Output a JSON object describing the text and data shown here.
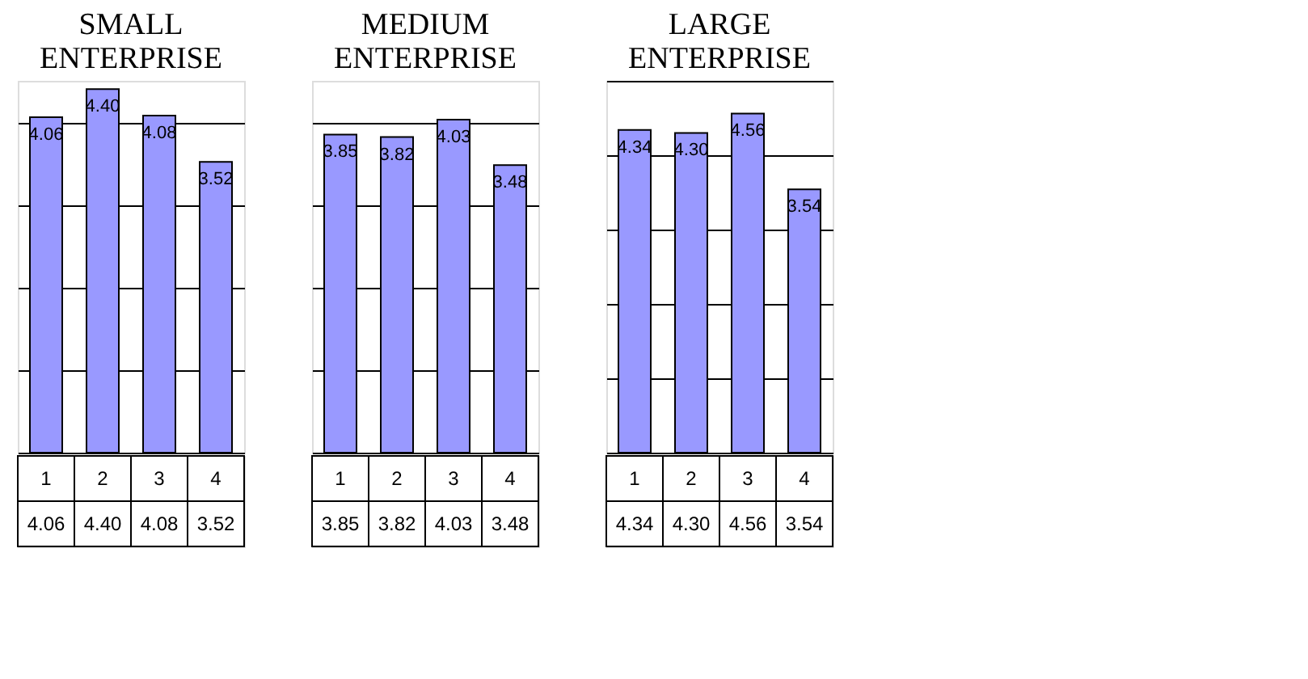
{
  "chart_data": [
    {
      "type": "bar",
      "title": "SMALL ENTERPRISE",
      "categories": [
        "1",
        "2",
        "3",
        "4"
      ],
      "values": [
        4.06,
        4.4,
        4.08,
        3.52
      ],
      "value_labels": [
        "4.06",
        "4.40",
        "4.08",
        "3.52"
      ],
      "color": "#9999ff",
      "grid": "y",
      "tick_labels": "x"
    },
    {
      "type": "bar",
      "title": "MEDIUM ENTERPRISE",
      "categories": [
        "1",
        "2",
        "3",
        "4"
      ],
      "values": [
        3.85,
        3.82,
        4.03,
        3.48
      ],
      "value_labels": [
        "3.85",
        "3.82",
        "4.03",
        "3.48"
      ],
      "color": "#9999ff",
      "grid": "y",
      "tick_labels": "x"
    },
    {
      "type": "bar",
      "title": "LARGE ENTERPRISE",
      "categories": [
        "1",
        "2",
        "3",
        "4"
      ],
      "values": [
        4.34,
        4.3,
        4.56,
        3.54
      ],
      "value_labels": [
        "4.34",
        "4.30",
        "4.56",
        "3.54"
      ],
      "color": "#9999ff",
      "grid": "y",
      "tick_labels": "x"
    }
  ]
}
